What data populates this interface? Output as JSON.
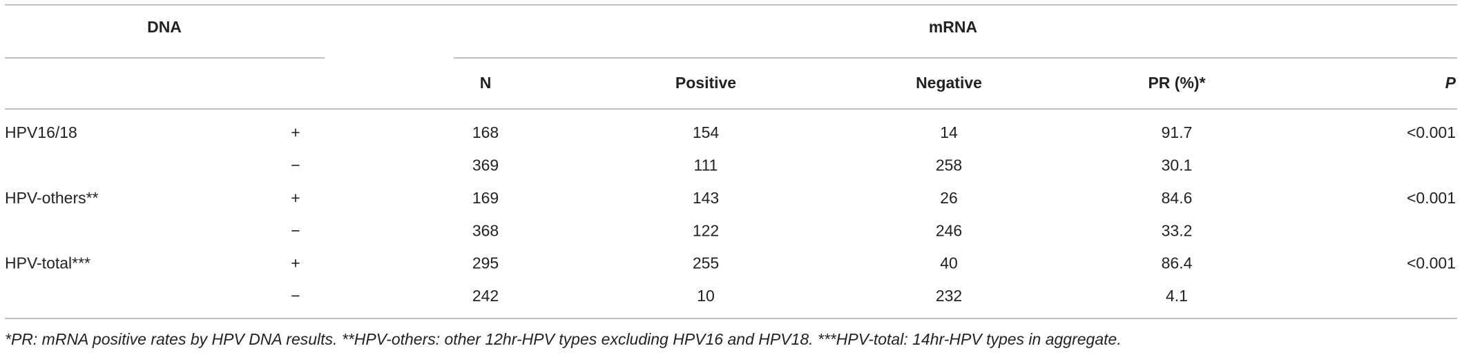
{
  "table": {
    "header": {
      "dna": "DNA",
      "mrna": "mRNA"
    },
    "columns": [
      "N",
      "Positive",
      "Negative",
      "PR (%)*",
      "P"
    ],
    "groups": [
      {
        "label": "HPV16/18",
        "p": "<0.001",
        "rows": [
          {
            "sign": "+",
            "n": 168,
            "positive": 154,
            "negative": 14,
            "pr": 91.7
          },
          {
            "sign": "−",
            "n": 369,
            "positive": 111,
            "negative": 258,
            "pr": 30.1
          }
        ]
      },
      {
        "label": "HPV-others**",
        "p": "<0.001",
        "rows": [
          {
            "sign": "+",
            "n": 169,
            "positive": 143,
            "negative": 26,
            "pr": 84.6
          },
          {
            "sign": "−",
            "n": 368,
            "positive": 122,
            "negative": 246,
            "pr": 33.2
          }
        ]
      },
      {
        "label": "HPV-total***",
        "p": "<0.001",
        "rows": [
          {
            "sign": "+",
            "n": 295,
            "positive": 255,
            "negative": 40,
            "pr": 86.4
          },
          {
            "sign": "−",
            "n": 242,
            "positive": 10,
            "negative": 232,
            "pr": 4.1
          }
        ]
      }
    ],
    "footnote": "*PR: mRNA positive rates by HPV DNA results. **HPV-others: other 12hr-HPV types excluding HPV16 and HPV18. ***HPV-total: 14hr-HPV types in aggregate."
  }
}
